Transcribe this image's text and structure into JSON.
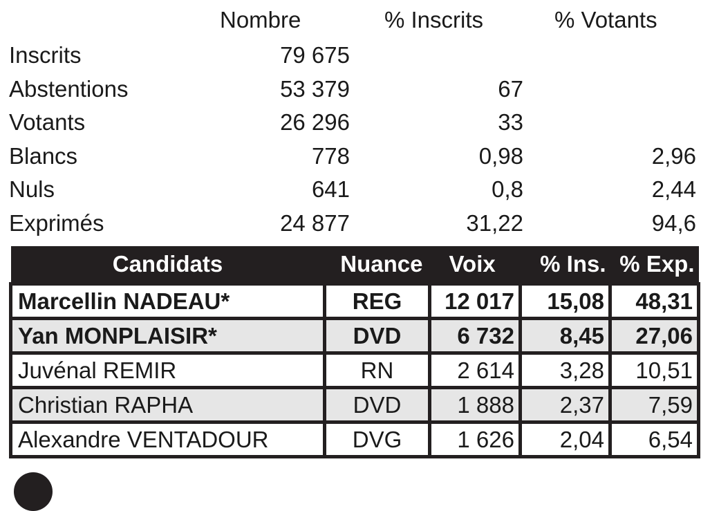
{
  "summary": {
    "headers": {
      "nombre": "Nombre",
      "pct_inscrits": "% Inscrits",
      "pct_votants": "% Votants"
    },
    "rows": [
      {
        "label": "Inscrits",
        "nombre": "79 675",
        "pct_inscrits": "",
        "pct_votants": ""
      },
      {
        "label": "Abstentions",
        "nombre": "53 379",
        "pct_inscrits": "67",
        "pct_votants": ""
      },
      {
        "label": "Votants",
        "nombre": "26 296",
        "pct_inscrits": "33",
        "pct_votants": ""
      },
      {
        "label": "Blancs",
        "nombre": "778",
        "pct_inscrits": "0,98",
        "pct_votants": "2,96"
      },
      {
        "label": "Nuls",
        "nombre": "641",
        "pct_inscrits": "0,8",
        "pct_votants": "2,44"
      },
      {
        "label": "Exprimés",
        "nombre": "24 877",
        "pct_inscrits": "31,22",
        "pct_votants": "94,6"
      }
    ]
  },
  "candidates": {
    "headers": {
      "name": "Candidats",
      "nuance": "Nuance",
      "voix": "Voix",
      "pct_ins": "% Ins.",
      "pct_exp": "% Exp."
    },
    "rows": [
      {
        "name": "Marcellin NADEAU*",
        "nuance": "REG",
        "voix": "12 017",
        "pct_ins": "15,08",
        "pct_exp": "48,31",
        "elected": true
      },
      {
        "name": "Yan MONPLAISIR*",
        "nuance": "DVD",
        "voix": "6 732",
        "pct_ins": "8,45",
        "pct_exp": "27,06",
        "elected": true
      },
      {
        "name": "Juvénal REMIR",
        "nuance": "RN",
        "voix": "2 614",
        "pct_ins": "3,28",
        "pct_exp": "10,51",
        "elected": false
      },
      {
        "name": "Christian RAPHA",
        "nuance": "DVD",
        "voix": "1 888",
        "pct_ins": "2,37",
        "pct_exp": "7,59",
        "elected": false
      },
      {
        "name": "Alexandre VENTADOUR",
        "nuance": "DVG",
        "voix": "1 626",
        "pct_ins": "2,04",
        "pct_exp": "6,54",
        "elected": false
      }
    ]
  },
  "colors": {
    "header_bg": "#231f20",
    "header_text": "#ffffff",
    "alt_row_bg": "#e6e6e6",
    "text": "#1a1a1a"
  }
}
